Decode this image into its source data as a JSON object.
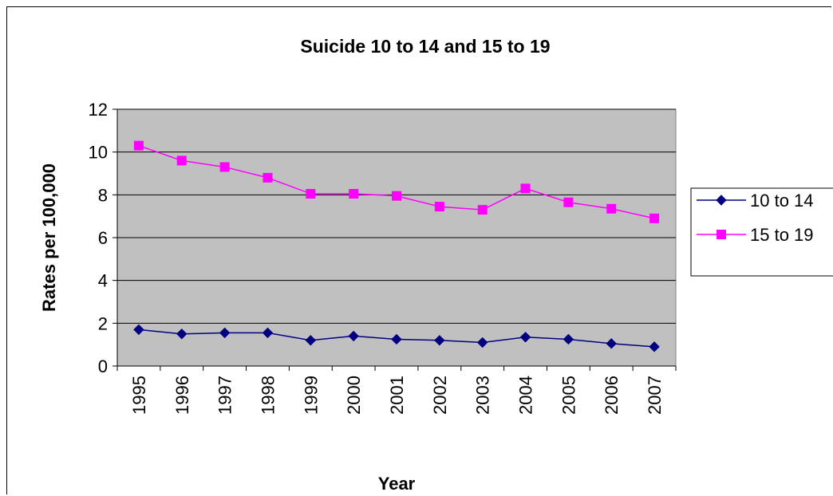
{
  "chart_data": {
    "type": "line",
    "title": "Suicide 10 to 14 and 15 to 19",
    "xlabel": "Year",
    "ylabel": "Rates per 100,000",
    "ylim": [
      0,
      12
    ],
    "yticks": [
      "0",
      "2",
      "4",
      "6",
      "8",
      "10",
      "12"
    ],
    "categories": [
      "1995",
      "1996",
      "1997",
      "1998",
      "1999",
      "2000",
      "2001",
      "2002",
      "2003",
      "2004",
      "2005",
      "2006",
      "2007"
    ],
    "grid": true,
    "legend_position": "right",
    "plot_background": "#c0c0c0",
    "series": [
      {
        "name": "10 to 14",
        "color": "#000080",
        "marker": "diamond",
        "values": [
          1.7,
          1.5,
          1.55,
          1.55,
          1.2,
          1.4,
          1.25,
          1.2,
          1.1,
          1.35,
          1.25,
          1.05,
          0.9
        ]
      },
      {
        "name": "15 to 19",
        "color": "#ff00ff",
        "marker": "square",
        "values": [
          10.3,
          9.6,
          9.3,
          8.8,
          8.05,
          8.05,
          7.95,
          7.45,
          7.3,
          8.3,
          7.65,
          7.35,
          6.9
        ]
      }
    ]
  }
}
